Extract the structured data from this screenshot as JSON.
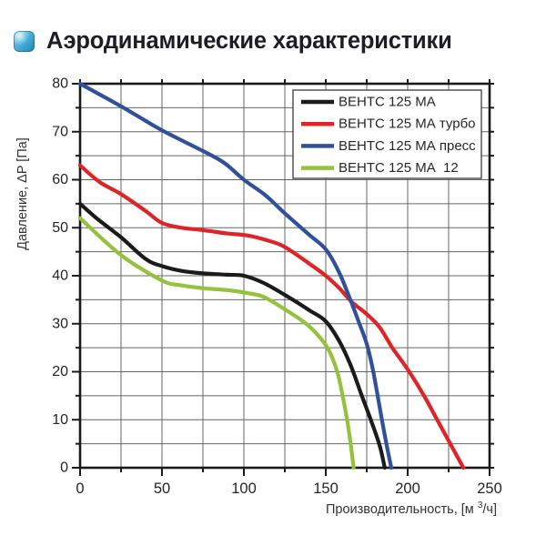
{
  "header": {
    "title": "Аэродинамические характеристики",
    "icon": "blue-glossy-square"
  },
  "chart_data": {
    "type": "line",
    "title": "",
    "xlabel": "Производительность, [м ³/ч]",
    "xlabel_parts": [
      "Производительность, [м ",
      "3",
      "/ч]"
    ],
    "ylabel": "Давление, ΔP [Па]",
    "xlim": [
      0,
      250
    ],
    "ylim": [
      0,
      80
    ],
    "x_major_ticks": [
      0,
      50,
      100,
      150,
      200,
      250
    ],
    "x_minor_step": 25,
    "y_major_ticks": [
      0,
      10,
      20,
      30,
      40,
      50,
      60,
      70,
      80
    ],
    "y_minor_step": 5,
    "grid": true,
    "grid_color": "#666666",
    "frame_color": "#1a1a1a",
    "tick_label_color": "#242424",
    "axis_title_color": "#333333",
    "legend_position": "top-right",
    "legend_border_color": "#3a3a3a",
    "series": [
      {
        "name": "ВЕНТС 125 МА",
        "color": "#1b1b1b",
        "points": [
          [
            0,
            55
          ],
          [
            10,
            52
          ],
          [
            25,
            48
          ],
          [
            40,
            43.5
          ],
          [
            50,
            42
          ],
          [
            62,
            41
          ],
          [
            75,
            40.5
          ],
          [
            90,
            40.2
          ],
          [
            100,
            40
          ],
          [
            112,
            38.5
          ],
          [
            125,
            36
          ],
          [
            140,
            32.8
          ],
          [
            150,
            30.5
          ],
          [
            158,
            26.5
          ],
          [
            165,
            21.5
          ],
          [
            172,
            15
          ],
          [
            178,
            9.5
          ],
          [
            183,
            4.5
          ],
          [
            186,
            0
          ]
        ]
      },
      {
        "name": "ВЕНТС 125 МА турбо",
        "color": "#de2426",
        "points": [
          [
            0,
            63
          ],
          [
            12,
            59.5
          ],
          [
            25,
            57
          ],
          [
            40,
            53.5
          ],
          [
            50,
            51
          ],
          [
            62,
            50
          ],
          [
            75,
            49.5
          ],
          [
            90,
            48.8
          ],
          [
            102,
            48.4
          ],
          [
            115,
            47.3
          ],
          [
            125,
            46
          ],
          [
            140,
            42.5
          ],
          [
            150,
            40
          ],
          [
            158,
            37.5
          ],
          [
            166,
            34.5
          ],
          [
            175,
            32
          ],
          [
            183,
            29.2
          ],
          [
            191,
            24.8
          ],
          [
            200,
            20.5
          ],
          [
            210,
            15
          ],
          [
            218,
            10
          ],
          [
            226,
            5
          ],
          [
            234,
            0
          ]
        ]
      },
      {
        "name": "ВЕНТС 125 МА пресс",
        "color": "#31509c",
        "points": [
          [
            0,
            80
          ],
          [
            25,
            75.3
          ],
          [
            50,
            70.3
          ],
          [
            75,
            66
          ],
          [
            88,
            63.5
          ],
          [
            100,
            60
          ],
          [
            113,
            56.8
          ],
          [
            125,
            53
          ],
          [
            140,
            48.5
          ],
          [
            150,
            45.5
          ],
          [
            158,
            40.8
          ],
          [
            165,
            35
          ],
          [
            170,
            30.5
          ],
          [
            175,
            25.8
          ],
          [
            179,
            20
          ],
          [
            184,
            10.5
          ],
          [
            187,
            5
          ],
          [
            190,
            0
          ]
        ]
      },
      {
        "name": "ВЕНТС 125 МА  12",
        "color": "#95c23c",
        "points": [
          [
            0,
            52
          ],
          [
            25,
            44.3
          ],
          [
            50,
            39
          ],
          [
            62,
            38
          ],
          [
            75,
            37.4
          ],
          [
            90,
            37
          ],
          [
            102,
            36.4
          ],
          [
            112,
            35.6
          ],
          [
            125,
            33
          ],
          [
            138,
            30
          ],
          [
            146,
            27.3
          ],
          [
            152,
            24.4
          ],
          [
            157,
            20
          ],
          [
            160,
            15.5
          ],
          [
            163,
            10
          ],
          [
            165,
            5.5
          ],
          [
            167,
            0
          ]
        ]
      }
    ]
  }
}
